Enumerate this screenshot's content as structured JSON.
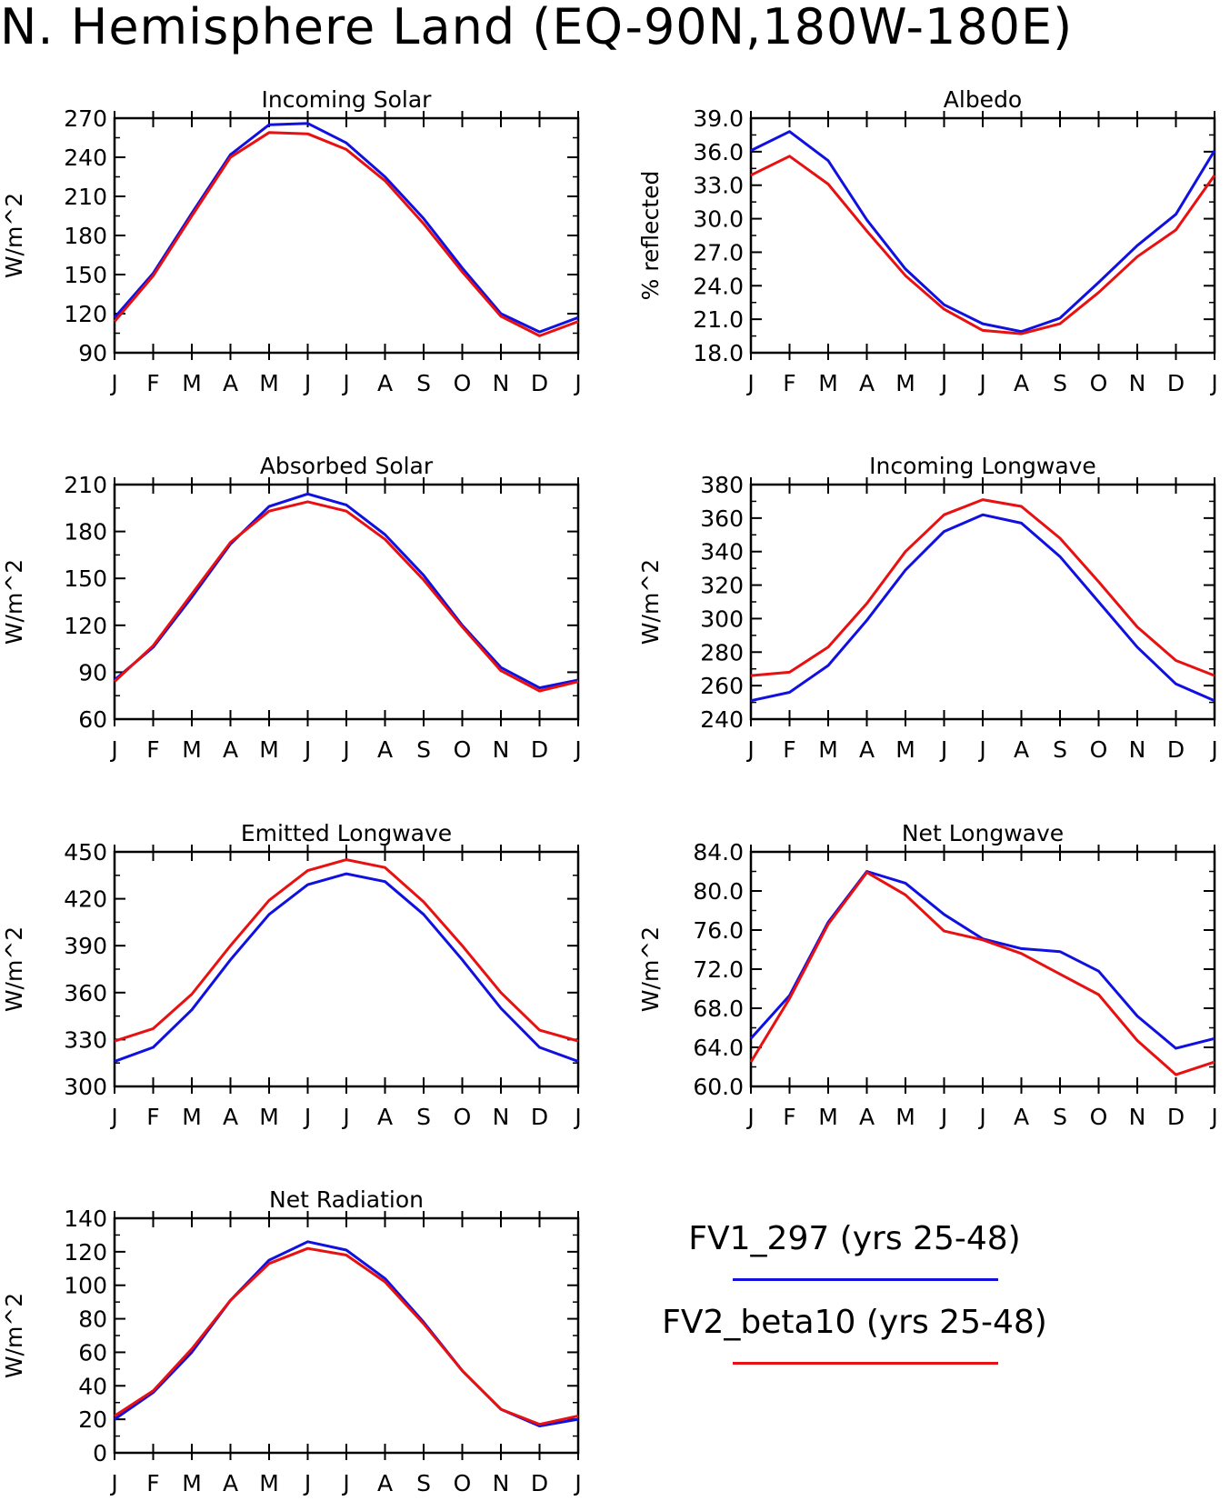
{
  "page_title": "N. Hemisphere Land (EQ-90N,180W-180E)",
  "legend": [
    {
      "label": "FV1_297 (yrs 25-48)",
      "color": "#1010e0"
    },
    {
      "label": "FV2_beta10 (yrs 25-48)",
      "color": "#e81010"
    }
  ],
  "chart_data": [
    {
      "type": "line",
      "title": "Incoming Solar",
      "ylabel": "W/m^2",
      "categories": [
        "J",
        "F",
        "M",
        "A",
        "M",
        "J",
        "J",
        "A",
        "S",
        "O",
        "N",
        "D",
        "J"
      ],
      "ylim": [
        90,
        270
      ],
      "yticks": [
        "90",
        "120",
        "150",
        "180",
        "210",
        "240",
        "270"
      ],
      "series": [
        {
          "name": "FV1_297 (yrs 25-48)",
          "values": [
            117,
            151,
            197,
            242,
            265,
            266,
            251,
            225,
            193,
            155,
            120,
            106,
            117
          ]
        },
        {
          "name": "FV2_beta10 (yrs 25-48)",
          "values": [
            114,
            149,
            195,
            240,
            259,
            258,
            246,
            222,
            189,
            152,
            118,
            103,
            114
          ]
        }
      ]
    },
    {
      "type": "line",
      "title": "Albedo",
      "ylabel": "% reflected",
      "categories": [
        "J",
        "F",
        "M",
        "A",
        "M",
        "J",
        "J",
        "A",
        "S",
        "O",
        "N",
        "D",
        "J"
      ],
      "ylim": [
        18,
        39
      ],
      "yticks": [
        "18.0",
        "21.0",
        "24.0",
        "27.0",
        "30.0",
        "33.0",
        "36.0",
        "39.0"
      ],
      "series": [
        {
          "name": "FV1_297 (yrs 25-48)",
          "values": [
            36.1,
            37.8,
            35.2,
            29.9,
            25.5,
            22.3,
            20.6,
            19.9,
            21.1,
            24.3,
            27.6,
            30.4,
            36.1
          ]
        },
        {
          "name": "FV2_beta10 (yrs 25-48)",
          "values": [
            33.9,
            35.6,
            33.1,
            28.9,
            24.9,
            21.9,
            20.0,
            19.7,
            20.6,
            23.4,
            26.6,
            29.0,
            33.9
          ]
        }
      ]
    },
    {
      "type": "line",
      "title": "Absorbed Solar",
      "ylabel": "W/m^2",
      "categories": [
        "J",
        "F",
        "M",
        "A",
        "M",
        "J",
        "J",
        "A",
        "S",
        "O",
        "N",
        "D",
        "J"
      ],
      "ylim": [
        60,
        210
      ],
      "yticks": [
        "60",
        "90",
        "120",
        "150",
        "180",
        "210"
      ],
      "series": [
        {
          "name": "FV1_297 (yrs 25-48)",
          "values": [
            85,
            106,
            138,
            172,
            196,
            204,
            197,
            178,
            152,
            120,
            93,
            80,
            85
          ]
        },
        {
          "name": "FV2_beta10 (yrs 25-48)",
          "values": [
            84,
            107,
            140,
            173,
            193,
            199,
            193,
            175,
            149,
            119,
            91,
            78,
            84
          ]
        }
      ]
    },
    {
      "type": "line",
      "title": "Incoming Longwave",
      "ylabel": "W/m^2",
      "categories": [
        "J",
        "F",
        "M",
        "A",
        "M",
        "J",
        "J",
        "A",
        "S",
        "O",
        "N",
        "D",
        "J"
      ],
      "ylim": [
        240,
        380
      ],
      "yticks": [
        "240",
        "260",
        "280",
        "300",
        "320",
        "340",
        "360",
        "380"
      ],
      "series": [
        {
          "name": "FV1_297 (yrs 25-48)",
          "values": [
            251,
            256,
            272,
            299,
            329,
            352,
            362,
            357,
            337,
            310,
            283,
            261,
            251
          ]
        },
        {
          "name": "FV2_beta10 (yrs 25-48)",
          "values": [
            266,
            268,
            283,
            309,
            340,
            362,
            371,
            367,
            348,
            322,
            295,
            275,
            266
          ]
        }
      ]
    },
    {
      "type": "line",
      "title": "Emitted Longwave",
      "ylabel": "W/m^2",
      "categories": [
        "J",
        "F",
        "M",
        "A",
        "M",
        "J",
        "J",
        "A",
        "S",
        "O",
        "N",
        "D",
        "J"
      ],
      "ylim": [
        300,
        450
      ],
      "yticks": [
        "300",
        "330",
        "360",
        "390",
        "420",
        "450"
      ],
      "series": [
        {
          "name": "FV1_297 (yrs 25-48)",
          "values": [
            316,
            325,
            349,
            381,
            410,
            429,
            436,
            431,
            410,
            381,
            350,
            325,
            316
          ]
        },
        {
          "name": "FV2_beta10 (yrs 25-48)",
          "values": [
            329,
            337,
            359,
            390,
            419,
            438,
            445,
            440,
            418,
            390,
            360,
            336,
            329
          ]
        }
      ]
    },
    {
      "type": "line",
      "title": "Net Longwave",
      "ylabel": "W/m^2",
      "categories": [
        "J",
        "F",
        "M",
        "A",
        "M",
        "J",
        "J",
        "A",
        "S",
        "O",
        "N",
        "D",
        "J"
      ],
      "ylim": [
        60,
        84
      ],
      "yticks": [
        "60.0",
        "64.0",
        "68.0",
        "72.0",
        "76.0",
        "80.0",
        "84.0"
      ],
      "series": [
        {
          "name": "FV1_297 (yrs 25-48)",
          "values": [
            64.9,
            69.3,
            76.8,
            82.0,
            80.8,
            77.6,
            75.1,
            74.1,
            73.8,
            71.8,
            67.2,
            63.9,
            64.9
          ]
        },
        {
          "name": "FV2_beta10 (yrs 25-48)",
          "values": [
            62.5,
            69.0,
            76.6,
            81.9,
            79.6,
            75.9,
            75.0,
            73.6,
            71.5,
            69.4,
            64.7,
            61.2,
            62.5
          ]
        }
      ]
    },
    {
      "type": "line",
      "title": "Net Radiation",
      "ylabel": "W/m^2",
      "categories": [
        "J",
        "F",
        "M",
        "A",
        "M",
        "J",
        "J",
        "A",
        "S",
        "O",
        "N",
        "D",
        "J"
      ],
      "ylim": [
        0,
        140
      ],
      "yticks": [
        "0",
        "20",
        "40",
        "60",
        "80",
        "100",
        "120",
        "140"
      ],
      "series": [
        {
          "name": "FV1_297 (yrs 25-48)",
          "values": [
            20,
            36,
            60,
            91,
            115,
            126,
            121,
            104,
            78,
            49,
            26,
            16,
            20
          ]
        },
        {
          "name": "FV2_beta10 (yrs 25-48)",
          "values": [
            22,
            37,
            62,
            91,
            113,
            122,
            118,
            102,
            77,
            49,
            26,
            17,
            22
          ]
        }
      ]
    }
  ]
}
